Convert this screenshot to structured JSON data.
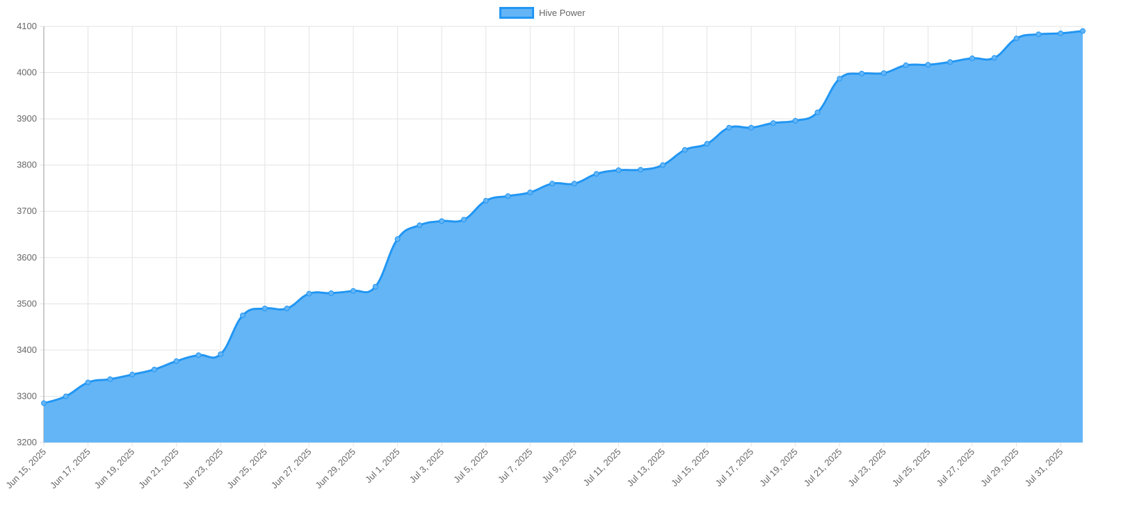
{
  "chart_data": {
    "type": "area",
    "categories": [
      "Jun 15, 2025",
      null,
      "Jun 17, 2025",
      null,
      "Jun 19, 2025",
      null,
      "Jun 21, 2025",
      null,
      "Jun 23, 2025",
      null,
      "Jun 25, 2025",
      null,
      "Jun 27, 2025",
      null,
      "Jun 29, 2025",
      null,
      "Jul 1, 2025",
      null,
      "Jul 3, 2025",
      null,
      "Jul 5, 2025",
      null,
      "Jul 7, 2025",
      null,
      "Jul 9, 2025",
      null,
      "Jul 11, 2025",
      null,
      "Jul 13, 2025",
      null,
      "Jul 15, 2025",
      null,
      "Jul 17, 2025",
      null,
      "Jul 19, 2025",
      null,
      "Jul 21, 2025",
      null,
      "Jul 23, 2025",
      null,
      "Jul 25, 2025",
      null,
      "Jul 27, 2025",
      null,
      "Jul 29, 2025",
      null,
      "Jul 31, 2025",
      null
    ],
    "series": [
      {
        "name": "Hive Power",
        "color": "#2196f3",
        "fill": "#64b5f6",
        "values": [
          3285,
          3300,
          3330,
          3337,
          3347,
          3358,
          3376,
          3389,
          3391,
          3475,
          3490,
          3490,
          3522,
          3523,
          3528,
          3537,
          3640,
          3670,
          3679,
          3682,
          3723,
          3733,
          3741,
          3760,
          3760,
          3781,
          3789,
          3790,
          3800,
          3833,
          3846,
          3881,
          3881,
          3891,
          3896,
          3914,
          3987,
          3998,
          3999,
          4016,
          4017,
          4023,
          4031,
          4032,
          4074,
          4083,
          4085,
          4090
        ]
      }
    ],
    "ylim": [
      3200,
      4100
    ],
    "yticks": [
      3200,
      3300,
      3400,
      3500,
      3600,
      3700,
      3800,
      3900,
      4000,
      4100
    ],
    "grid": true,
    "legend": "top"
  }
}
